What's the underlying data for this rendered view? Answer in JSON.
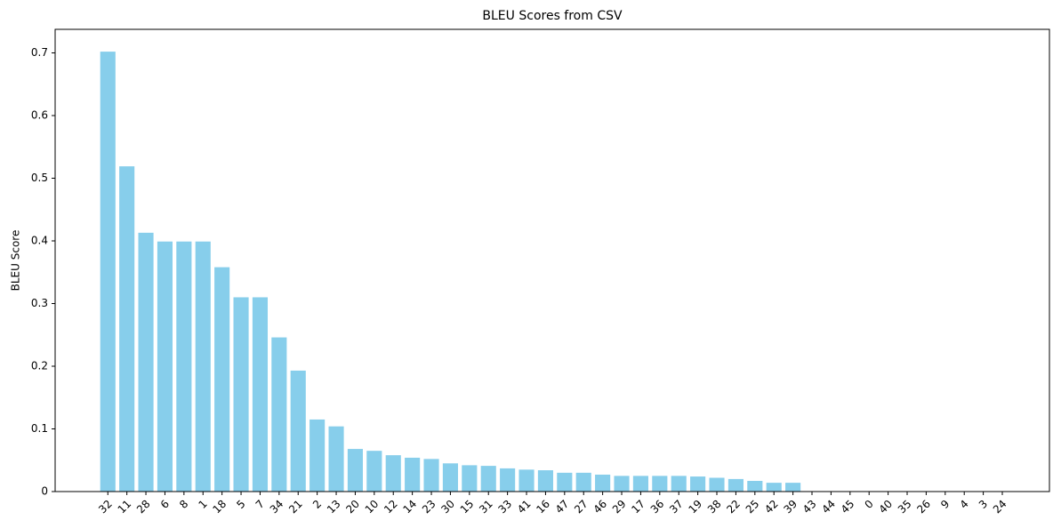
{
  "chart_data": {
    "type": "bar",
    "title": "BLEU Scores from CSV",
    "y_label": "BLEU Score",
    "categories": [
      "32",
      "11",
      "28",
      "6",
      "8",
      "1",
      "18",
      "5",
      "7",
      "34",
      "21",
      "2",
      "13",
      "20",
      "10",
      "12",
      "14",
      "23",
      "30",
      "15",
      "31",
      "33",
      "41",
      "16",
      "47",
      "27",
      "46",
      "29",
      "17",
      "36",
      "37",
      "19",
      "38",
      "22",
      "25",
      "42",
      "39",
      "43",
      "44",
      "45",
      "0",
      "40",
      "35",
      "26",
      "9",
      "4",
      "3",
      "24"
    ],
    "values": [
      0.702,
      0.519,
      0.413,
      0.399,
      0.399,
      0.399,
      0.358,
      0.31,
      0.31,
      0.246,
      0.193,
      0.115,
      0.104,
      0.068,
      0.065,
      0.058,
      0.054,
      0.052,
      0.045,
      0.042,
      0.041,
      0.037,
      0.035,
      0.034,
      0.03,
      0.03,
      0.027,
      0.025,
      0.025,
      0.025,
      0.025,
      0.024,
      0.022,
      0.02,
      0.017,
      0.014,
      0.014,
      0,
      0,
      0,
      0,
      0,
      0,
      0,
      0,
      0,
      0,
      0
    ],
    "color": "#87ceeb",
    "ylim": [
      0,
      0.7376
    ],
    "yticks": [
      0.0,
      0.1,
      0.2,
      0.3,
      0.4,
      0.5,
      0.6,
      0.7
    ],
    "grid": false
  }
}
